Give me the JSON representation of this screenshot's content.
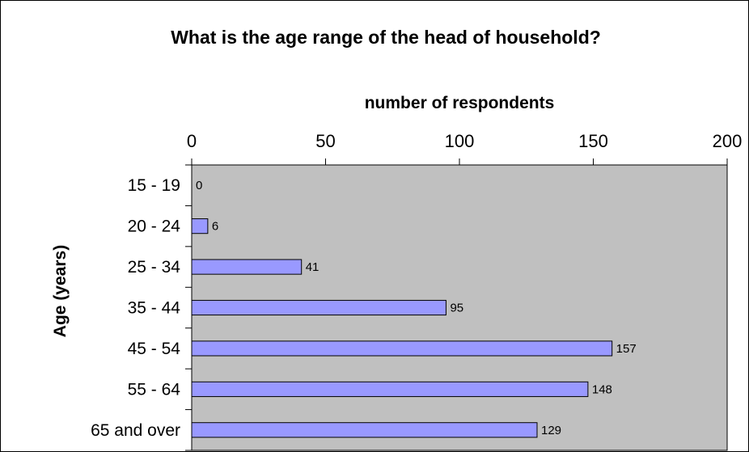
{
  "chart_data": {
    "type": "bar",
    "orientation": "horizontal",
    "title": "What is the age range of the head of household?",
    "xlabel": "number of respondents",
    "ylabel": "Age (years)",
    "xlim": [
      0,
      200
    ],
    "x_ticks": [
      0,
      50,
      100,
      150,
      200
    ],
    "x_axis_position": "top",
    "categories": [
      "15 - 19",
      "20 - 24",
      "25 - 34",
      "35 - 44",
      "45 - 54",
      "55 - 64",
      "65 and over"
    ],
    "values": [
      0,
      6,
      41,
      95,
      157,
      148,
      129
    ],
    "data_labels": [
      "0",
      "6",
      "41",
      "95",
      "157",
      "148",
      "129"
    ],
    "grid": false,
    "legend": "none",
    "colors": {
      "plot_background": "#C0C0C0",
      "bar_fill": "#9999FF",
      "bar_stroke": "#000000"
    }
  }
}
